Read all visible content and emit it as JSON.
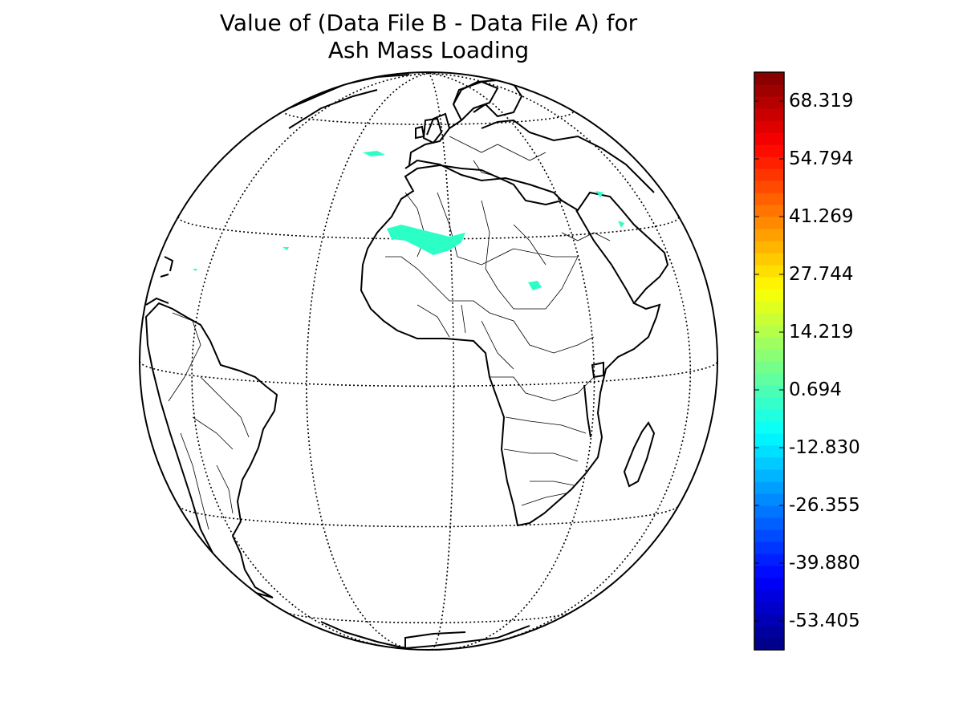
{
  "title": [
    "Value of (Data File B - Data File A) for",
    "Ash Mass Loading"
  ],
  "map": {
    "projection": "orthographic",
    "center": {
      "lat": 5,
      "lon": -5
    },
    "meridians_deg": [
      -60,
      -30,
      0,
      30,
      60
    ],
    "parallels_deg": [
      -60,
      -30,
      0,
      30,
      60
    ],
    "graticule_style": "dotted",
    "boundaries": [
      "coastlines",
      "country borders"
    ]
  },
  "colorbar": {
    "colormap": "jet",
    "min": -60.168,
    "max": 75.082,
    "ticks": [
      "68.319",
      "54.794",
      "41.269",
      "27.744",
      "14.219",
      "0.694",
      "-12.830",
      "-26.355",
      "-39.880",
      "-53.405"
    ],
    "tick_values": [
      68.319,
      54.794,
      41.269,
      27.744,
      14.219,
      0.694,
      -12.83,
      -26.355,
      -39.88,
      -53.405
    ],
    "n_levels": 48
  },
  "chart_data": {
    "type": "heatmap",
    "title": "Value of (Data File B - Data File A) for Ash Mass Loading",
    "value_range": [
      -60.168,
      75.082
    ],
    "nonzero_value_color": "#2cffc6",
    "regions_with_data": [
      "Sahara (Algeria / Mali / Niger)",
      "Chad / Sudan",
      "North Atlantic near Azores",
      "Red Sea coast",
      "Atlantic west of Senegal"
    ]
  }
}
